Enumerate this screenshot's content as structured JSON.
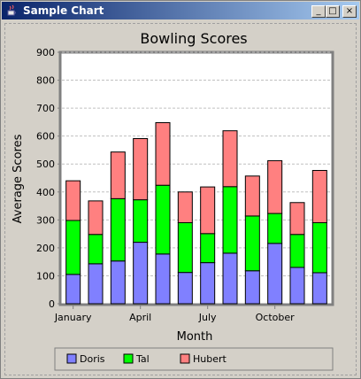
{
  "window": {
    "title": "Sample Chart",
    "minimize_label": "_",
    "maximize_label": "□",
    "close_label": "×"
  },
  "chart_data": {
    "type": "bar",
    "stacked": true,
    "title": "Bowling Scores",
    "xlabel": "Month",
    "ylabel": "Average Scores",
    "ylim": [
      0,
      900
    ],
    "yticks": [
      0,
      100,
      200,
      300,
      400,
      500,
      600,
      700,
      800,
      900
    ],
    "grid": true,
    "legend_position": "bottom",
    "x_tick_labels": [
      {
        "index": 0,
        "label": "January"
      },
      {
        "index": 3,
        "label": "April"
      },
      {
        "index": 6,
        "label": "July"
      },
      {
        "index": 9,
        "label": "October"
      }
    ],
    "categories_count": 12,
    "series": [
      {
        "name": "Doris",
        "color": "#8080ff",
        "values": [
          105,
          143,
          153,
          220,
          178,
          112,
          147,
          181,
          118,
          216,
          130,
          111
        ]
      },
      {
        "name": "Tal",
        "color": "#00ff00",
        "values": [
          193,
          105,
          223,
          152,
          246,
          178,
          104,
          238,
          196,
          107,
          118,
          179
        ]
      },
      {
        "name": "Hubert",
        "color": "#ff8080",
        "values": [
          142,
          120,
          167,
          219,
          224,
          110,
          167,
          200,
          143,
          189,
          114,
          187
        ]
      }
    ]
  }
}
